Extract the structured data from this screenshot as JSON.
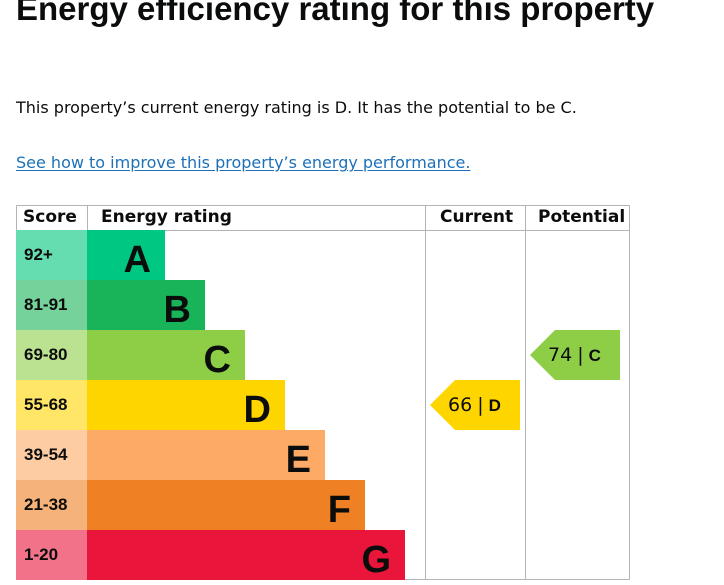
{
  "heading": "Energy efficiency rating for this property",
  "summary": "This property’s current energy rating is D. It has the potential to be C.",
  "improve_link": "See how to improve this property’s energy performance.",
  "table": {
    "headers": {
      "score": "Score",
      "rating": "Energy rating",
      "current": "Current",
      "potential": "Potential"
    },
    "bands": [
      {
        "score": "92+",
        "letter": "A",
        "color": "#00c781",
        "score_bg": "#66dcb1"
      },
      {
        "score": "81-91",
        "letter": "B",
        "color": "#19b459",
        "score_bg": "#75d29b"
      },
      {
        "score": "69-80",
        "letter": "C",
        "color": "#8dce46",
        "score_bg": "#bbe290"
      },
      {
        "score": "55-68",
        "letter": "D",
        "color": "#ffd500",
        "score_bg": "#ffe666"
      },
      {
        "score": "39-54",
        "letter": "E",
        "color": "#fcaa65",
        "score_bg": "#fdcca3"
      },
      {
        "score": "21-38",
        "letter": "F",
        "color": "#ef8023",
        "score_bg": "#f5b37b"
      },
      {
        "score": "1-20",
        "letter": "G",
        "color": "#e9153b",
        "score_bg": "#f27389"
      }
    ],
    "current": {
      "value": "66",
      "separator": "|",
      "letter": "D",
      "color": "#ffd500"
    },
    "potential": {
      "value": "74",
      "separator": "|",
      "letter": "C",
      "color": "#8dce46"
    }
  }
}
